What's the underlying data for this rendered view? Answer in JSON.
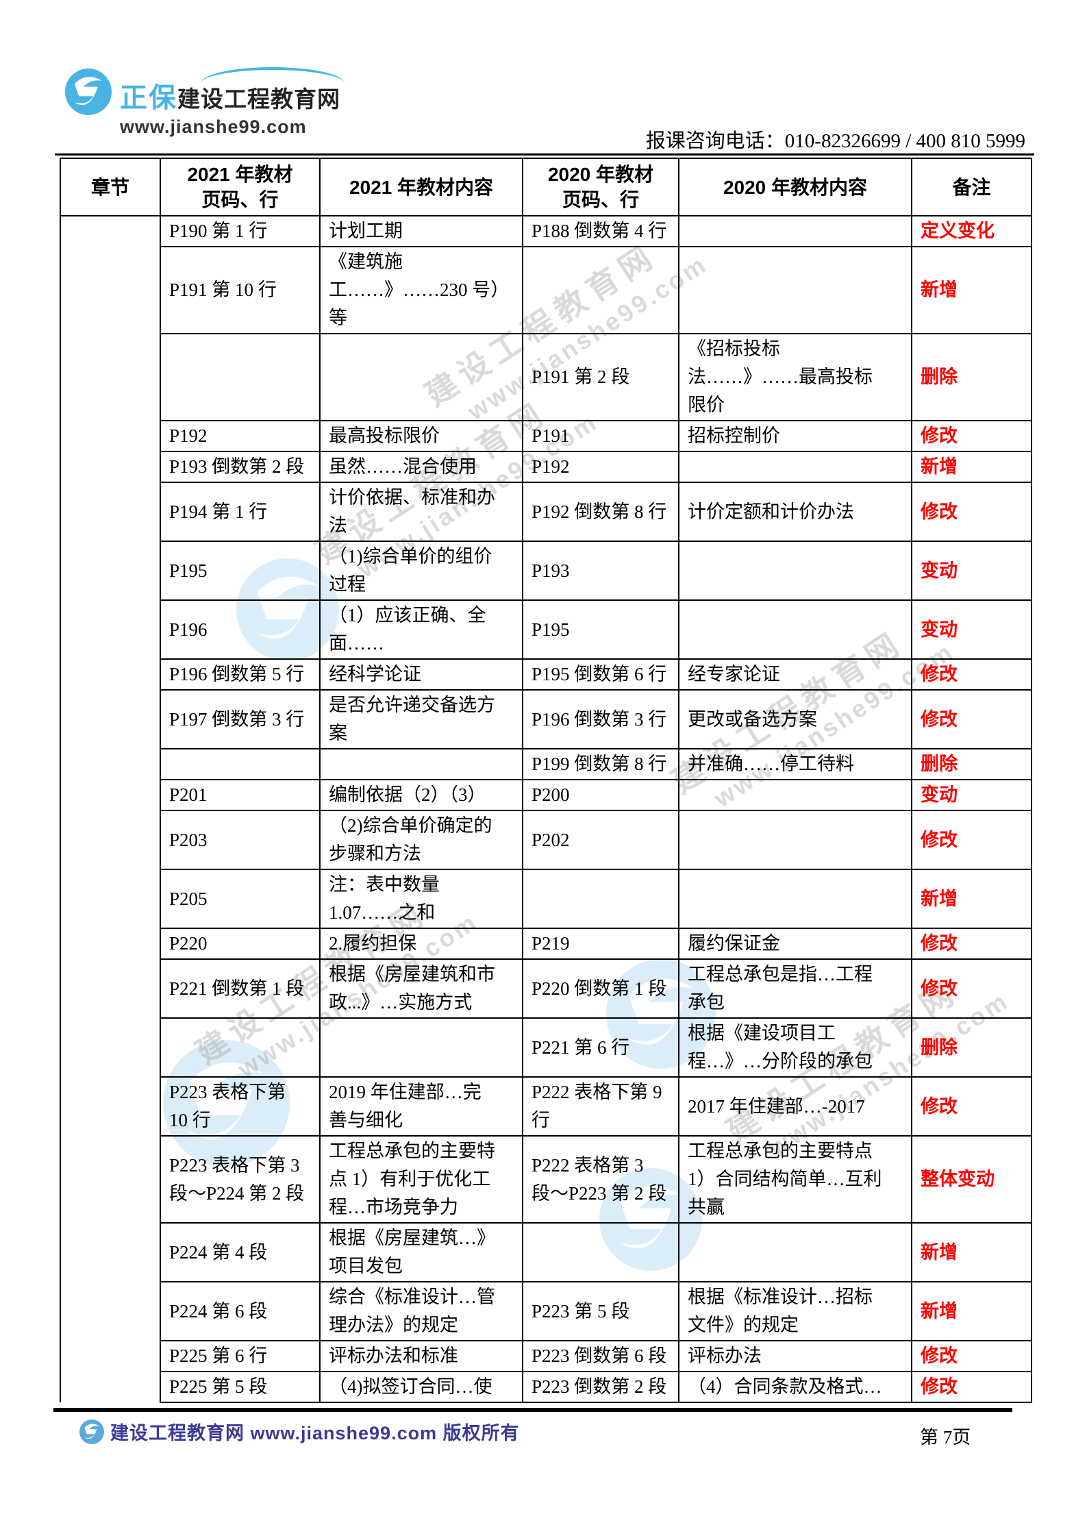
{
  "header": {
    "brand_zh": "正保",
    "brand_name": "建设工程教育网",
    "brand_url": "www.jianshe99.com",
    "phone_line": "报课咨询电话：010-82326699 / 400 810 5999"
  },
  "watermark": {
    "line1": "建设工程教育网",
    "line2": "www.jianshe99.com"
  },
  "table": {
    "columns": [
      "章节",
      "2021 年教材\n页码、行",
      "2021 年教材内容",
      "2020 年教材\n页码、行",
      "2020 年教材内容",
      "备注"
    ],
    "chapter_cell": "",
    "rows": [
      {
        "p2021": "P190 第 1 行",
        "c2021": "计划工期",
        "p2020": "P188 倒数第 4 行",
        "c2020": "",
        "remark": "定义变化"
      },
      {
        "p2021": "P191 第 10 行",
        "c2021": "《建筑施\n工……》……230 号）\n等",
        "p2020": "",
        "c2020": "",
        "remark": "新增"
      },
      {
        "p2021": "",
        "c2021": "",
        "p2020": "P191 第 2 段",
        "c2020": "《招标投标\n法……》……最高投标\n限价",
        "remark": "删除"
      },
      {
        "p2021": "P192",
        "c2021": "最高投标限价",
        "p2020": "P191",
        "c2020": "招标控制价",
        "remark": "修改"
      },
      {
        "p2021": "P193 倒数第 2 段",
        "c2021": "虽然……混合使用",
        "p2020": "P192",
        "c2020": "",
        "remark": "新增"
      },
      {
        "p2021": "P194 第 1 行",
        "c2021": "计价依据、标准和办\n法",
        "p2020": "P192 倒数第 8 行",
        "c2020": "计价定额和计价办法",
        "remark": "修改"
      },
      {
        "p2021": "P195",
        "c2021": "（1)综合单价的组价\n过程",
        "p2020": "P193",
        "c2020": "",
        "remark": "变动"
      },
      {
        "p2021": "P196",
        "c2021": "（1）应该正确、全\n面……",
        "p2020": "P195",
        "c2020": "",
        "remark": "变动"
      },
      {
        "p2021": "P196 倒数第 5 行",
        "c2021": "经科学论证",
        "p2020": "P195 倒数第 6 行",
        "c2020": "经专家论证",
        "remark": "修改"
      },
      {
        "p2021": "P197 倒数第 3 行",
        "c2021": "是否允许递交备选方\n案",
        "p2020": "P196 倒数第 3 行",
        "c2020": "更改或备选方案",
        "remark": "修改"
      },
      {
        "p2021": "",
        "c2021": "",
        "p2020": "P199 倒数第 8 行",
        "c2020": "并准确……停工待料",
        "remark": "删除"
      },
      {
        "p2021": "P201",
        "c2021": "编制依据（2）（3）",
        "p2020": "P200",
        "c2020": "",
        "remark": "变动"
      },
      {
        "p2021": "P203",
        "c2021": "（2)综合单价确定的\n步骤和方法",
        "p2020": "P202",
        "c2020": "",
        "remark": "修改"
      },
      {
        "p2021": "P205",
        "c2021": "注：表中数量\n1.07……之和",
        "p2020": "",
        "c2020": "",
        "remark": "新增"
      },
      {
        "p2021": "P220",
        "c2021": "2.履约担保",
        "p2020": "P219",
        "c2020": "履约保证金",
        "remark": "修改"
      },
      {
        "p2021": "P221 倒数第 1 段",
        "c2021": "根据《房屋建筑和市\n政...》…实施方式",
        "p2020": "P220 倒数第 1 段",
        "c2020": "工程总承包是指…工程\n承包",
        "remark": "修改"
      },
      {
        "p2021": "",
        "c2021": "",
        "p2020": "P221 第 6 行",
        "c2020": "根据《建设项目工\n程…》…分阶段的承包",
        "remark": "删除"
      },
      {
        "p2021": "P223 表格下第\n10 行",
        "c2021": "2019 年住建部…完\n善与细化",
        "p2020": "P222 表格下第 9\n行",
        "c2020": "2017 年住建部…-2017",
        "remark": "修改"
      },
      {
        "p2021": "P223 表格下第 3\n段～P224 第 2 段",
        "c2021": "工程总承包的主要特\n点 1）有利于优化工\n程…市场竞争力",
        "p2020": "P222 表格第 3\n段～P223 第 2 段",
        "c2020": "工程总承包的主要特点\n1）合同结构简单…互利\n共赢",
        "remark": "整体变动"
      },
      {
        "p2021": "P224 第 4 段",
        "c2021": "根据《房屋建筑…》\n项目发包",
        "p2020": "",
        "c2020": "",
        "remark": "新增"
      },
      {
        "p2021": "P224 第 6 段",
        "c2021": "综合《标准设计…管\n理办法》的规定",
        "p2020": "P223 第 5 段",
        "c2020": "根据《标准设计…招标\n文件》的规定",
        "remark": "新增"
      },
      {
        "p2021": "P225 第 6 行",
        "c2021": "评标办法和标准",
        "p2020": "P223 倒数第 6 段",
        "c2020": "评标办法",
        "remark": "修改"
      },
      {
        "p2021": "P225 第 5 段",
        "c2021": "（4)拟签订合同…使",
        "p2020": "P223 倒数第 2 段",
        "c2020": "（4）合同条款及格式…",
        "remark": "修改"
      }
    ]
  },
  "footer": {
    "copyright": "建设工程教育网 www.jianshe99.com 版权所有",
    "page": "第 7页"
  },
  "colors": {
    "accent_blue": "#49b3e4",
    "remark_red": "#ff0000",
    "footer_purple": "#3c3a96"
  }
}
